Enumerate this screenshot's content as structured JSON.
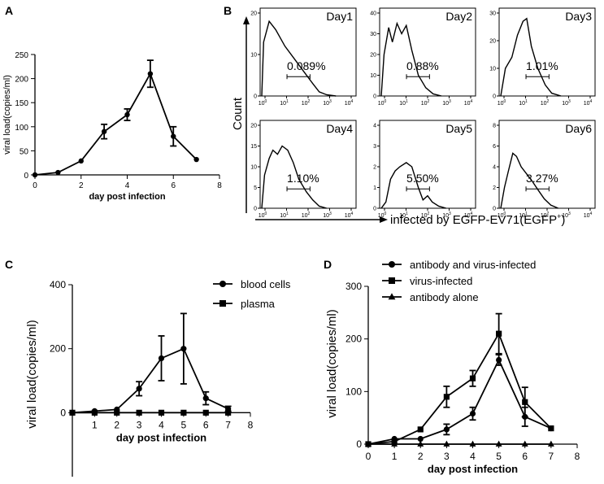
{
  "panels": {
    "A": {
      "label": "A"
    },
    "B": {
      "label": "B"
    },
    "C": {
      "label": "C"
    },
    "D": {
      "label": "D"
    }
  },
  "chart_data": [
    {
      "id": "A",
      "type": "line",
      "xlabel": "day post infection",
      "ylabel": "viral load(copies/ml)",
      "xlim": [
        0,
        8
      ],
      "ylim": [
        0,
        250
      ],
      "xticks": [
        0,
        2,
        4,
        6,
        8
      ],
      "yticks": [
        0,
        50,
        100,
        150,
        200,
        250
      ],
      "series": [
        {
          "name": "viral load",
          "marker": "circle",
          "x": [
            0,
            1,
            2,
            3,
            4,
            5,
            6,
            7
          ],
          "values": [
            0,
            5,
            29,
            90,
            125,
            210,
            80,
            32
          ],
          "error": [
            0,
            0,
            0,
            15,
            12,
            28,
            20,
            0
          ]
        }
      ]
    },
    {
      "id": "B",
      "type": "histogram",
      "xlabel": "infected by EGFP-EV71(EGFP",
      "xlabel_sup": "+",
      "xlabel_close": ")",
      "ylabel": "Count",
      "x_scale": "log",
      "xticks": [
        "10",
        "10",
        "10",
        "10",
        "10"
      ],
      "xtick_exponents": [
        "0",
        "1",
        "2",
        "3",
        "4"
      ],
      "subplots": [
        {
          "title": "Day1",
          "percent": "0.089%",
          "yticks": [
            "0",
            "10",
            "20"
          ],
          "ymax": 20,
          "curve": [
            [
              0,
              0
            ],
            [
              0.02,
              13
            ],
            [
              0.08,
              18
            ],
            [
              0.15,
              16
            ],
            [
              0.25,
              12
            ],
            [
              0.35,
              9
            ],
            [
              0.45,
              6
            ],
            [
              0.55,
              3
            ],
            [
              0.62,
              1
            ],
            [
              0.7,
              0.3
            ],
            [
              0.8,
              0
            ]
          ]
        },
        {
          "title": "Day2",
          "percent": "0.88%",
          "yticks": [
            "0",
            "10",
            "20",
            "30",
            "40"
          ],
          "ymax": 40,
          "curve": [
            [
              0,
              0
            ],
            [
              0.03,
              20
            ],
            [
              0.08,
              33
            ],
            [
              0.12,
              26
            ],
            [
              0.17,
              35
            ],
            [
              0.22,
              30
            ],
            [
              0.27,
              34
            ],
            [
              0.33,
              22
            ],
            [
              0.4,
              10
            ],
            [
              0.48,
              4
            ],
            [
              0.56,
              1
            ],
            [
              0.65,
              0
            ]
          ]
        },
        {
          "title": "Day3",
          "percent": "1.01%",
          "yticks": [
            "0",
            "10",
            "20",
            "30"
          ],
          "ymax": 30,
          "curve": [
            [
              0,
              0
            ],
            [
              0.05,
              10
            ],
            [
              0.12,
              14
            ],
            [
              0.18,
              22
            ],
            [
              0.24,
              27
            ],
            [
              0.28,
              28
            ],
            [
              0.33,
              18
            ],
            [
              0.4,
              10
            ],
            [
              0.48,
              4
            ],
            [
              0.55,
              1
            ],
            [
              0.65,
              0
            ]
          ]
        },
        {
          "title": "Day4",
          "percent": "1.10%",
          "yticks": [
            "0",
            "5",
            "10",
            "15",
            "20"
          ],
          "ymax": 20,
          "curve": [
            [
              0,
              0
            ],
            [
              0.03,
              8
            ],
            [
              0.08,
              12
            ],
            [
              0.12,
              14
            ],
            [
              0.17,
              13
            ],
            [
              0.22,
              15
            ],
            [
              0.28,
              14
            ],
            [
              0.34,
              11
            ],
            [
              0.4,
              7
            ],
            [
              0.48,
              4
            ],
            [
              0.55,
              2
            ],
            [
              0.62,
              0.5
            ],
            [
              0.7,
              0
            ]
          ]
        },
        {
          "title": "Day5",
          "percent": "5.50%",
          "yticks": [
            "0",
            "1",
            "2",
            "3",
            "4"
          ],
          "ymax": 4,
          "curve": [
            [
              0,
              0
            ],
            [
              0.05,
              0.3
            ],
            [
              0.1,
              1.4
            ],
            [
              0.15,
              1.8
            ],
            [
              0.2,
              2.0
            ],
            [
              0.27,
              2.2
            ],
            [
              0.33,
              2.0
            ],
            [
              0.4,
              1.0
            ],
            [
              0.45,
              0.4
            ],
            [
              0.5,
              0.6
            ],
            [
              0.55,
              0.3
            ],
            [
              0.62,
              0.1
            ],
            [
              0.7,
              0
            ]
          ]
        },
        {
          "title": "Day6",
          "percent": "3.27%",
          "yticks": [
            "0",
            "2",
            "4",
            "6",
            "8"
          ],
          "ymax": 8,
          "curve": [
            [
              0,
              0
            ],
            [
              0.04,
              2
            ],
            [
              0.08,
              3.5
            ],
            [
              0.13,
              5.3
            ],
            [
              0.17,
              5.0
            ],
            [
              0.22,
              4.0
            ],
            [
              0.28,
              3.3
            ],
            [
              0.34,
              2.6
            ],
            [
              0.4,
              1.8
            ],
            [
              0.47,
              0.9
            ],
            [
              0.54,
              0.3
            ],
            [
              0.62,
              0
            ]
          ]
        }
      ]
    },
    {
      "id": "C",
      "type": "line",
      "xlabel": "day post infection",
      "ylabel": "viral load(copies/ml)",
      "xlim": [
        0,
        8
      ],
      "ylim": [
        -200,
        400
      ],
      "xticks": [
        1,
        2,
        3,
        4,
        5,
        6,
        7,
        8
      ],
      "yticks": [
        0,
        200,
        400
      ],
      "legend": "top-right",
      "series": [
        {
          "name": "blood cells",
          "marker": "circle",
          "x": [
            0,
            1,
            2,
            3,
            4,
            5,
            6,
            7
          ],
          "values": [
            0,
            5,
            10,
            75,
            170,
            200,
            45,
            12
          ],
          "error": [
            0,
            0,
            0,
            22,
            70,
            110,
            20,
            8
          ]
        },
        {
          "name": "plasma",
          "marker": "square",
          "x": [
            0,
            1,
            2,
            3,
            4,
            5,
            6,
            7
          ],
          "values": [
            0,
            0,
            0,
            0,
            0,
            0,
            0,
            0
          ],
          "error": [
            0,
            0,
            0,
            0,
            0,
            0,
            0,
            0
          ]
        }
      ]
    },
    {
      "id": "D",
      "type": "line",
      "xlabel": "day post infection",
      "ylabel": "viral load(copies/ml)",
      "xlim": [
        0,
        8
      ],
      "ylim": [
        0,
        300
      ],
      "xticks": [
        0,
        1,
        2,
        3,
        4,
        5,
        6,
        7,
        8
      ],
      "yticks": [
        0,
        100,
        200,
        300
      ],
      "legend": "top-left",
      "series": [
        {
          "name": "antibody and virus-infected",
          "marker": "circle",
          "x": [
            0,
            1,
            2,
            3,
            4,
            5,
            6,
            7
          ],
          "values": [
            0,
            10,
            10,
            28,
            58,
            160,
            52,
            30
          ],
          "error": [
            0,
            0,
            0,
            10,
            12,
            10,
            18,
            0
          ]
        },
        {
          "name": "virus-infected",
          "marker": "square",
          "x": [
            0,
            1,
            2,
            3,
            4,
            5,
            6,
            7
          ],
          "values": [
            0,
            5,
            28,
            90,
            125,
            210,
            80,
            30
          ],
          "error": [
            0,
            0,
            0,
            20,
            15,
            38,
            28,
            0
          ]
        },
        {
          "name": "antibody alone",
          "marker": "triangle",
          "x": [
            0,
            1,
            2,
            3,
            4,
            5,
            6,
            7
          ],
          "values": [
            0,
            0,
            0,
            0,
            0,
            0,
            0,
            0
          ],
          "error": [
            0,
            0,
            0,
            0,
            0,
            0,
            0,
            0
          ]
        }
      ]
    }
  ]
}
